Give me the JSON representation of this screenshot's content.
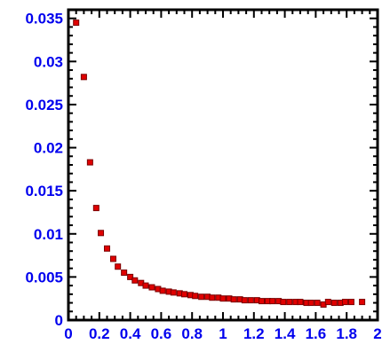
{
  "chart_data": {
    "type": "scatter",
    "title": "",
    "xlabel": "",
    "ylabel": "",
    "xlim": [
      0,
      2
    ],
    "ylim": [
      0,
      0.036
    ],
    "grid": false,
    "colors": {
      "marker": "#e00000",
      "marker_outline": "#7a0000",
      "tick_label": "#0000ee",
      "axes": "#000000"
    },
    "x_tick_labels": [
      {
        "value": 0,
        "label": "0"
      },
      {
        "value": 0.2,
        "label": "0.2"
      },
      {
        "value": 0.4,
        "label": "0.4"
      },
      {
        "value": 0.6,
        "label": "0.6"
      },
      {
        "value": 0.8,
        "label": "0.8"
      },
      {
        "value": 1,
        "label": "1"
      },
      {
        "value": 1.2,
        "label": "1.2"
      },
      {
        "value": 1.4,
        "label": "1.4"
      },
      {
        "value": 1.6,
        "label": "1.6"
      },
      {
        "value": 1.8,
        "label": "1.8"
      },
      {
        "value": 2,
        "label": "2"
      }
    ],
    "y_tick_labels": [
      {
        "value": 0,
        "label": "0"
      },
      {
        "value": 0.005,
        "label": "0.005"
      },
      {
        "value": 0.01,
        "label": "0.01"
      },
      {
        "value": 0.015,
        "label": "0.015"
      },
      {
        "value": 0.02,
        "label": "0.02"
      },
      {
        "value": 0.025,
        "label": "0.025"
      },
      {
        "value": 0.03,
        "label": "0.03"
      },
      {
        "value": 0.035,
        "label": "0.035"
      }
    ],
    "series": [
      {
        "points": [
          [
            0.05,
            0.0345
          ],
          [
            0.1,
            0.0282
          ],
          [
            0.14,
            0.0183
          ],
          [
            0.18,
            0.013
          ],
          [
            0.21,
            0.0101
          ],
          [
            0.25,
            0.0083
          ],
          [
            0.29,
            0.0071
          ],
          [
            0.32,
            0.0062
          ],
          [
            0.36,
            0.0055
          ],
          [
            0.4,
            0.005
          ],
          [
            0.43,
            0.0046
          ],
          [
            0.47,
            0.0043
          ],
          [
            0.5,
            0.004
          ],
          [
            0.54,
            0.0038
          ],
          [
            0.58,
            0.0036
          ],
          [
            0.61,
            0.0034
          ],
          [
            0.65,
            0.0033
          ],
          [
            0.68,
            0.0032
          ],
          [
            0.72,
            0.0031
          ],
          [
            0.75,
            0.003
          ],
          [
            0.79,
            0.0029
          ],
          [
            0.82,
            0.0028
          ],
          [
            0.86,
            0.0027
          ],
          [
            0.9,
            0.0027
          ],
          [
            0.93,
            0.0026
          ],
          [
            0.97,
            0.0026
          ],
          [
            1.0,
            0.0025
          ],
          [
            1.04,
            0.0025
          ],
          [
            1.07,
            0.0024
          ],
          [
            1.11,
            0.0024
          ],
          [
            1.14,
            0.0023
          ],
          [
            1.18,
            0.0023
          ],
          [
            1.22,
            0.0023
          ],
          [
            1.25,
            0.0022
          ],
          [
            1.29,
            0.0022
          ],
          [
            1.32,
            0.0022
          ],
          [
            1.36,
            0.0022
          ],
          [
            1.39,
            0.0021
          ],
          [
            1.43,
            0.0021
          ],
          [
            1.47,
            0.0021
          ],
          [
            1.5,
            0.0021
          ],
          [
            1.54,
            0.002
          ],
          [
            1.57,
            0.002
          ],
          [
            1.61,
            0.002
          ],
          [
            1.65,
            0.0018
          ],
          [
            1.68,
            0.0021
          ],
          [
            1.72,
            0.002
          ],
          [
            1.76,
            0.002
          ],
          [
            1.79,
            0.0021
          ],
          [
            1.83,
            0.0021
          ],
          [
            1.9,
            0.0021
          ]
        ]
      }
    ]
  }
}
